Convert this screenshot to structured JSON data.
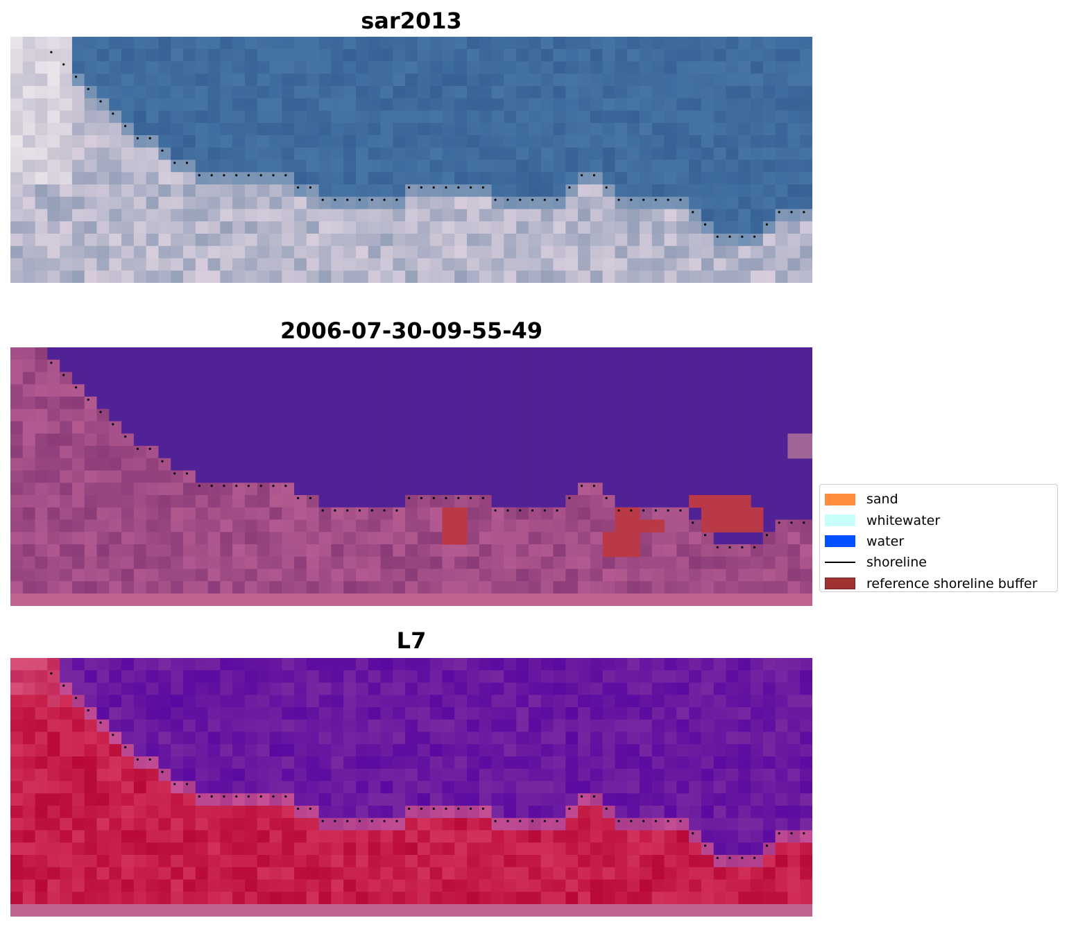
{
  "panels": [
    {
      "title": "sar2013"
    },
    {
      "title": "2006-07-30-09-55-49"
    },
    {
      "title": "L7"
    }
  ],
  "legend": {
    "items": [
      {
        "label": "sand",
        "color": "#ff8c3c",
        "kind": "patch"
      },
      {
        "label": "whitewater",
        "color": "#c8fffa",
        "kind": "patch"
      },
      {
        "label": "water",
        "color": "#0050ff",
        "kind": "patch"
      },
      {
        "label": "shoreline",
        "color": "#000000",
        "kind": "line"
      },
      {
        "label": "reference shoreline buffer",
        "color": "#a03232",
        "kind": "patch"
      }
    ]
  },
  "colors": {
    "water_class": "#512295",
    "land_class": "#9c4579",
    "buffer_overlay": "#b93946",
    "l7_water": "#6b1f9a",
    "l7_land": "#c41a4a",
    "strip": "#c0628e"
  }
}
